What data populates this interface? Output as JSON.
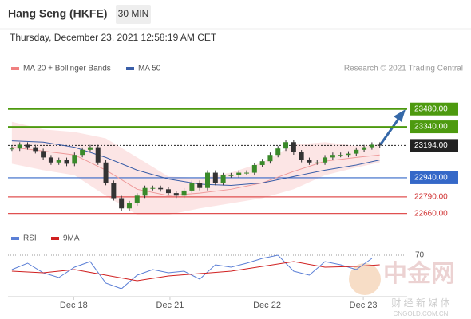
{
  "chart_data": {
    "type": "candlestick",
    "title": "Hang Seng (HKFE)",
    "timeframe": "30 MIN",
    "subtitle": "Thursday, December 23, 2021 12:58:19 AM CET",
    "credit": "Research © 2021 Trading Central",
    "watermark": {
      "name": "中金网",
      "tagline": "财 经 新 媒 体",
      "site": "CNGOLD.COM.CN"
    },
    "xlim": [
      -0.5,
      50.5
    ],
    "ylim": [
      22520,
      23710
    ],
    "xticks": [
      {
        "value": 7.9,
        "label": "Dec 18"
      },
      {
        "value": 20.2,
        "label": "Dec 21"
      },
      {
        "value": 32.6,
        "label": "Dec 22"
      },
      {
        "value": 44.9,
        "label": "Dec 23"
      }
    ],
    "closes": [
      23170,
      23200,
      23180,
      23150,
      23100,
      23060,
      23080,
      23050,
      23120,
      23160,
      23180,
      23060,
      22900,
      22780,
      22700,
      22740,
      22800,
      22860,
      22860,
      22850,
      22820,
      22800,
      22840,
      22900,
      22860,
      22980,
      22900,
      22960,
      22960,
      22980,
      22980,
      23040,
      23070,
      23120,
      23170,
      23220,
      23140,
      23080,
      23060,
      23060,
      23100,
      23120,
      23120,
      23130,
      23160,
      23180,
      23200,
      23194
    ],
    "series": [
      {
        "name": "MA 20 + Bollinger Bands",
        "color": "#f08080",
        "x": [
          0,
          4,
          8,
          12,
          16,
          20,
          24,
          28,
          32,
          36,
          40,
          44,
          47
        ],
        "values": [
          23180,
          23150,
          23120,
          23000,
          22850,
          22800,
          22820,
          22850,
          22900,
          22990,
          23070,
          23100,
          23120
        ],
        "upper": [
          23380,
          23320,
          23300,
          23250,
          23100,
          22950,
          22940,
          22980,
          23060,
          23200,
          23220,
          23190,
          23200
        ],
        "lower": [
          23050,
          23000,
          22960,
          22800,
          22650,
          22650,
          22700,
          22740,
          22780,
          22850,
          22960,
          23020,
          23060
        ]
      },
      {
        "name": "MA 50",
        "color": "#3a5ea8",
        "x": [
          0,
          4,
          8,
          12,
          16,
          20,
          24,
          28,
          32,
          36,
          40,
          44,
          47
        ],
        "values": [
          23230,
          23220,
          23180,
          23100,
          23000,
          22930,
          22890,
          22880,
          22900,
          22950,
          23000,
          23040,
          23080
        ]
      }
    ],
    "levels": [
      {
        "value": 23480,
        "color": "#4d9a0f"
      },
      {
        "value": 23340,
        "color": "#4d9a0f"
      },
      {
        "value": 23194,
        "color": "#222222"
      },
      {
        "value": 22940,
        "color": "#3568c8"
      },
      {
        "value": 22790,
        "color": "#e05050"
      },
      {
        "value": 22660,
        "color": "#e05050"
      }
    ],
    "level_labels": [
      "23480.00",
      "23340.00",
      "23194.00",
      "22940.00",
      "22790.00",
      "22660.00"
    ],
    "rsi": {
      "ylim": [
        20,
        80
      ],
      "yticks": [
        70
      ],
      "series": [
        {
          "name": "RSI",
          "color": "#5b7fd6",
          "x": [
            0,
            2,
            4,
            6,
            8,
            10,
            12,
            14,
            16,
            18,
            20,
            22,
            24,
            26,
            28,
            30,
            32,
            34,
            36,
            38,
            40,
            42,
            44,
            46
          ],
          "values": [
            52,
            60,
            48,
            42,
            55,
            62,
            35,
            28,
            45,
            52,
            48,
            50,
            40,
            58,
            55,
            60,
            66,
            70,
            50,
            45,
            62,
            58,
            52,
            66
          ]
        },
        {
          "name": "9MA",
          "color": "#d02020",
          "x": [
            0,
            4,
            8,
            12,
            16,
            20,
            24,
            28,
            32,
            36,
            40,
            44,
            47
          ],
          "values": [
            50,
            48,
            52,
            45,
            38,
            44,
            47,
            50,
            56,
            62,
            55,
            56,
            58
          ]
        }
      ]
    }
  }
}
